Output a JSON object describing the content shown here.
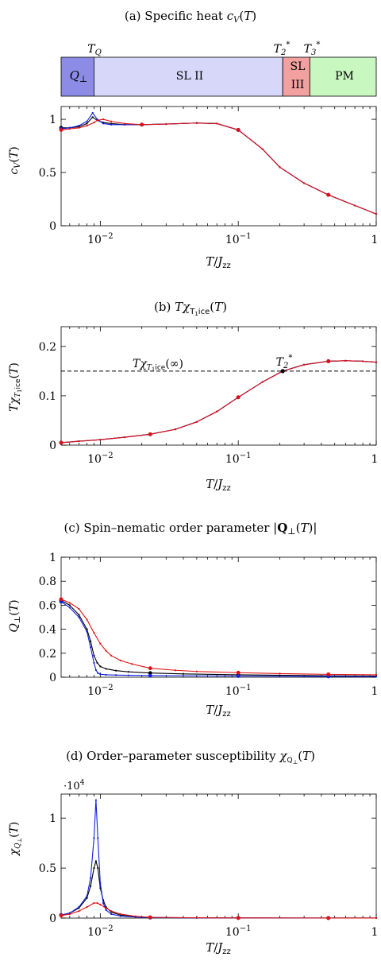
{
  "colors": {
    "black": "#000000",
    "red": "#e01010",
    "blue": "#1020e0",
    "phase_q": "#8c8ce6",
    "phase_sl2": "#d7d7fa",
    "phase_sl3": "#f2a0a0",
    "phase_pm": "#c8f7c0"
  },
  "phase_diagram": {
    "markers": [
      {
        "label": "T_Q",
        "T": 0.009
      },
      {
        "label": "T_2^*",
        "T": 0.21
      },
      {
        "label": "T_3^*",
        "T": 0.33
      }
    ],
    "regions": [
      {
        "label": "Q_⊥",
        "from": 0.0052,
        "to": 0.009,
        "color": "#8c8ce6"
      },
      {
        "label": "SL II",
        "from": 0.009,
        "to": 0.21,
        "color": "#d7d7fa"
      },
      {
        "label": "SL III",
        "from": 0.21,
        "to": 0.33,
        "color": "#f2a0a0"
      },
      {
        "label": "PM",
        "from": 0.33,
        "to": 1.0,
        "color": "#c8f7c0"
      }
    ]
  },
  "chart_data": [
    {
      "type": "line",
      "title": "(a) Specific heat c_V(T)",
      "xlabel": "T/J_zz",
      "ylabel": "c_V(T)",
      "xscale": "log",
      "xlim": [
        0.0052,
        1.0
      ],
      "ylim": [
        0,
        1.12
      ],
      "xticks": [
        0.01,
        0.1,
        1
      ],
      "xtick_labels": [
        "10^-2",
        "10^-1",
        "1"
      ],
      "yticks": [
        0,
        0.5,
        1
      ],
      "ytick_labels": [
        "0",
        "0.5",
        "1"
      ],
      "series": [
        {
          "color": "#000000",
          "x": [
            0.0052,
            0.006,
            0.007,
            0.008,
            0.0088,
            0.0095,
            0.0105,
            0.012,
            0.015,
            0.02,
            0.03,
            0.05,
            0.07,
            0.1,
            0.15,
            0.2,
            0.3,
            0.45,
            0.7,
            1.0
          ],
          "y": [
            0.92,
            0.92,
            0.93,
            0.96,
            1.02,
            0.99,
            0.97,
            0.96,
            0.95,
            0.95,
            0.955,
            0.965,
            0.96,
            0.9,
            0.72,
            0.55,
            0.4,
            0.29,
            0.19,
            0.11
          ]
        },
        {
          "color": "#1020e0",
          "x": [
            0.0052,
            0.006,
            0.007,
            0.008,
            0.0088,
            0.0095,
            0.0105,
            0.012,
            0.015,
            0.02,
            0.03,
            0.05,
            0.07,
            0.1,
            0.15,
            0.2,
            0.3,
            0.45,
            0.7,
            1.0
          ],
          "y": [
            0.91,
            0.92,
            0.94,
            0.98,
            1.06,
            1.0,
            0.96,
            0.95,
            0.95,
            0.95,
            0.955,
            0.965,
            0.96,
            0.9,
            0.72,
            0.55,
            0.4,
            0.29,
            0.19,
            0.11
          ]
        },
        {
          "color": "#e01010",
          "x": [
            0.0052,
            0.006,
            0.007,
            0.008,
            0.009,
            0.0095,
            0.0105,
            0.012,
            0.015,
            0.02,
            0.03,
            0.05,
            0.07,
            0.1,
            0.15,
            0.2,
            0.3,
            0.45,
            0.7,
            1.0
          ],
          "y": [
            0.9,
            0.91,
            0.92,
            0.94,
            0.97,
            0.99,
            1.0,
            0.98,
            0.96,
            0.95,
            0.955,
            0.965,
            0.96,
            0.9,
            0.72,
            0.55,
            0.4,
            0.29,
            0.19,
            0.11
          ]
        }
      ]
    },
    {
      "type": "line",
      "title": "(b) Tχ_T1ice(T)",
      "xlabel": "T/J_zz",
      "ylabel": "Tχ_T1ice(T)",
      "xscale": "log",
      "xlim": [
        0.0052,
        1.0
      ],
      "ylim": [
        0,
        0.24
      ],
      "xticks": [
        0.01,
        0.1,
        1
      ],
      "xtick_labels": [
        "10^-2",
        "10^-1",
        "1"
      ],
      "yticks": [
        0,
        0.1,
        0.2
      ],
      "ytick_labels": [
        "0",
        "0.1",
        "0.2"
      ],
      "annotations": [
        {
          "type": "hline",
          "y": 0.15,
          "label": "Tχ_T1ice(∞)"
        },
        {
          "type": "point",
          "x": 0.21,
          "y": 0.15,
          "label": "T_2^*"
        }
      ],
      "series": [
        {
          "color": "#000000",
          "x": [
            0.0052,
            0.007,
            0.01,
            0.015,
            0.023,
            0.035,
            0.05,
            0.07,
            0.1,
            0.15,
            0.21,
            0.3,
            0.45,
            0.6,
            0.8,
            1.0
          ],
          "y": [
            0.005,
            0.008,
            0.011,
            0.016,
            0.022,
            0.032,
            0.047,
            0.068,
            0.097,
            0.128,
            0.15,
            0.163,
            0.17,
            0.171,
            0.17,
            0.168
          ]
        },
        {
          "color": "#1020e0",
          "x": [
            0.0052,
            0.007,
            0.01,
            0.015,
            0.023,
            0.035,
            0.05,
            0.07,
            0.1,
            0.15,
            0.21,
            0.3,
            0.45,
            0.6,
            0.8,
            1.0
          ],
          "y": [
            0.005,
            0.008,
            0.011,
            0.016,
            0.022,
            0.032,
            0.047,
            0.068,
            0.097,
            0.128,
            0.15,
            0.163,
            0.17,
            0.171,
            0.17,
            0.168
          ]
        },
        {
          "color": "#e01010",
          "x": [
            0.0052,
            0.007,
            0.01,
            0.015,
            0.023,
            0.035,
            0.05,
            0.07,
            0.1,
            0.15,
            0.21,
            0.3,
            0.45,
            0.6,
            0.8,
            1.0
          ],
          "y": [
            0.005,
            0.008,
            0.011,
            0.016,
            0.022,
            0.032,
            0.047,
            0.068,
            0.097,
            0.128,
            0.15,
            0.163,
            0.17,
            0.171,
            0.17,
            0.168
          ]
        }
      ]
    },
    {
      "type": "line",
      "title": "(c) Spin–nematic order parameter |Q_⊥(T)|",
      "xlabel": "T/J_zz",
      "ylabel": "Q_⊥(T)",
      "xscale": "log",
      "xlim": [
        0.0052,
        1.0
      ],
      "ylim": [
        0,
        1.0
      ],
      "xticks": [
        0.01,
        0.1,
        1
      ],
      "xtick_labels": [
        "10^-2",
        "10^-1",
        "1"
      ],
      "yticks": [
        0,
        0.2,
        0.4,
        0.6,
        0.8,
        1
      ],
      "ytick_labels": [
        "0",
        "0.2",
        "0.4",
        "0.6",
        "0.8",
        "1"
      ],
      "series": [
        {
          "color": "#000000",
          "x": [
            0.0052,
            0.006,
            0.007,
            0.008,
            0.0085,
            0.009,
            0.0095,
            0.01,
            0.011,
            0.013,
            0.016,
            0.023,
            0.04,
            0.1,
            0.45,
            1.0
          ],
          "y": [
            0.64,
            0.6,
            0.52,
            0.4,
            0.3,
            0.18,
            0.12,
            0.09,
            0.07,
            0.055,
            0.045,
            0.035,
            0.028,
            0.02,
            0.012,
            0.01
          ]
        },
        {
          "color": "#1020e0",
          "x": [
            0.0052,
            0.006,
            0.007,
            0.008,
            0.0085,
            0.009,
            0.0093,
            0.0096,
            0.01,
            0.011,
            0.013,
            0.016,
            0.023,
            0.1,
            0.45,
            1.0
          ],
          "y": [
            0.63,
            0.58,
            0.5,
            0.38,
            0.25,
            0.12,
            0.06,
            0.035,
            0.025,
            0.02,
            0.018,
            0.016,
            0.014,
            0.01,
            0.007,
            0.005
          ]
        },
        {
          "color": "#e01010",
          "x": [
            0.0052,
            0.006,
            0.007,
            0.008,
            0.009,
            0.01,
            0.011,
            0.012,
            0.014,
            0.017,
            0.023,
            0.035,
            0.05,
            0.1,
            0.2,
            0.45,
            1.0
          ],
          "y": [
            0.65,
            0.62,
            0.57,
            0.48,
            0.37,
            0.28,
            0.22,
            0.18,
            0.14,
            0.11,
            0.075,
            0.058,
            0.048,
            0.038,
            0.03,
            0.024,
            0.02
          ]
        }
      ]
    },
    {
      "type": "line",
      "title": "(d) Order–parameter susceptibility χ_Q⊥(T)",
      "xlabel": "T/J_zz",
      "ylabel": "χ_Q⊥(T)",
      "xscale": "log",
      "xlim": [
        0.0052,
        1.0
      ],
      "ylim": [
        0,
        12400
      ],
      "xticks": [
        0.01,
        0.1,
        1
      ],
      "xtick_labels": [
        "10^-2",
        "10^-1",
        "1"
      ],
      "yticks": [
        0,
        5000,
        10000
      ],
      "ytick_labels": [
        "0",
        "0.5",
        "1"
      ],
      "y_multiplier": "·10^4",
      "series": [
        {
          "color": "#000000",
          "x": [
            0.0052,
            0.006,
            0.007,
            0.008,
            0.0085,
            0.009,
            0.0093,
            0.0096,
            0.01,
            0.0105,
            0.011,
            0.012,
            0.014,
            0.018,
            0.023,
            0.05,
            0.1,
            0.45,
            1.0
          ],
          "y": [
            300,
            500,
            1000,
            2000,
            3200,
            5000,
            5700,
            5000,
            3000,
            1800,
            1100,
            600,
            300,
            120,
            60,
            25,
            15,
            8,
            5
          ]
        },
        {
          "color": "#1020e0",
          "x": [
            0.0052,
            0.006,
            0.007,
            0.008,
            0.0085,
            0.009,
            0.0093,
            0.0096,
            0.01,
            0.0105,
            0.011,
            0.012,
            0.014,
            0.018,
            0.023,
            0.05,
            0.1,
            0.45,
            1.0
          ],
          "y": [
            300,
            500,
            1100,
            2200,
            4000,
            8000,
            11800,
            8000,
            3500,
            1500,
            800,
            400,
            200,
            100,
            50,
            20,
            12,
            6,
            4
          ]
        },
        {
          "color": "#e01010",
          "x": [
            0.0052,
            0.006,
            0.007,
            0.008,
            0.009,
            0.0095,
            0.01,
            0.011,
            0.012,
            0.014,
            0.018,
            0.023,
            0.05,
            0.1,
            0.45,
            1.0
          ],
          "y": [
            250,
            400,
            700,
            1100,
            1500,
            1500,
            1350,
            1000,
            700,
            400,
            180,
            80,
            30,
            15,
            8,
            5
          ]
        }
      ]
    }
  ]
}
